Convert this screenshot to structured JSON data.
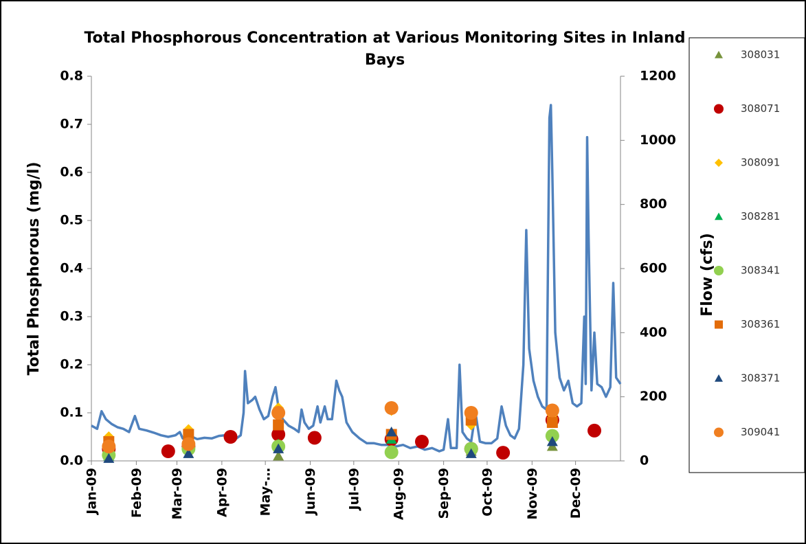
{
  "chart_data": {
    "type": "scatter",
    "title": "Total Phosphorous Concentration at Various Monitoring Sites in Inland Bays",
    "ylabel": "Total Phosphorous (mg/l)",
    "y2label": "Flow (cfs)",
    "xlim": [
      0,
      365
    ],
    "xticks": [
      {
        "value": 0,
        "label": "Jan-09"
      },
      {
        "value": 31,
        "label": "Feb-09"
      },
      {
        "value": 59,
        "label": "Mar-09"
      },
      {
        "value": 90,
        "label": "Apr-09"
      },
      {
        "value": 120,
        "label": "May-…"
      },
      {
        "value": 151,
        "label": "Jun-09"
      },
      {
        "value": 181,
        "label": "Jul-09"
      },
      {
        "value": 212,
        "label": "Aug-09"
      },
      {
        "value": 243,
        "label": "Sep-09"
      },
      {
        "value": 273,
        "label": "Oct-09"
      },
      {
        "value": 304,
        "label": "Nov-09"
      },
      {
        "value": 334,
        "label": "Dec-09"
      }
    ],
    "ylim": [
      0,
      0.8
    ],
    "yticks": [
      {
        "value": 0,
        "label": "0.0"
      },
      0.1,
      0.2,
      0.3,
      0.4,
      0.5,
      0.6,
      0.7,
      0.8
    ],
    "y2lim": [
      0,
      1200
    ],
    "y2ticks": [
      0,
      200,
      400,
      600,
      800,
      1000,
      1200
    ],
    "x": [
      12,
      53,
      67,
      96,
      129,
      154,
      207,
      228,
      262,
      284,
      318,
      347
    ],
    "series": [
      {
        "name": "308031",
        "color": "#77933c",
        "marker": "triangle",
        "values": [
          0.015,
          null,
          0.03,
          null,
          0.01,
          null,
          0.03,
          null,
          0.02,
          null,
          0.03,
          null
        ]
      },
      {
        "name": "308071",
        "color": "#c00000",
        "marker": "circle",
        "values": [
          0.025,
          0.02,
          0.03,
          0.05,
          0.055,
          0.048,
          0.045,
          0.04,
          0.025,
          0.017,
          0.085,
          0.063
        ]
      },
      {
        "name": "308091",
        "color": "#ffc000",
        "marker": "diamond",
        "values": [
          0.05,
          null,
          0.065,
          null,
          0.11,
          null,
          0.105,
          null,
          0.075,
          null,
          0.095,
          null
        ]
      },
      {
        "name": "308281",
        "color": "#00b050",
        "marker": "triangle",
        "values": [
          0.01,
          null,
          null,
          null,
          0.035,
          null,
          0.045,
          null,
          null,
          null,
          null,
          null
        ]
      },
      {
        "name": "308341",
        "color": "#92d050",
        "marker": "circle",
        "values": [
          0.012,
          null,
          0.025,
          null,
          0.03,
          null,
          0.018,
          null,
          0.025,
          null,
          0.052,
          null
        ]
      },
      {
        "name": "308361",
        "color": "#e36c09",
        "marker": "square",
        "values": [
          0.04,
          null,
          0.055,
          null,
          0.075,
          null,
          0.055,
          null,
          0.085,
          null,
          0.08,
          null
        ]
      },
      {
        "name": "308371",
        "color": "#1f497d",
        "marker": "triangle",
        "values": [
          0.005,
          null,
          0.015,
          null,
          0.025,
          null,
          0.06,
          null,
          0.015,
          null,
          0.04,
          null
        ]
      },
      {
        "name": "309041",
        "color": "#f07f20",
        "marker": "circle",
        "values": [
          0.03,
          null,
          0.035,
          null,
          0.1,
          null,
          0.11,
          null,
          0.1,
          null,
          0.105,
          null
        ]
      }
    ],
    "flow": {
      "color": "#4f81bd",
      "axis": "y2",
      "x": [
        0,
        4,
        7,
        10,
        14,
        18,
        22,
        26,
        30,
        33,
        38,
        43,
        48,
        53,
        58,
        61,
        63,
        68,
        73,
        78,
        83,
        88,
        92,
        96,
        100,
        103,
        105,
        106,
        108,
        111,
        113,
        116,
        119,
        122,
        125,
        127,
        129,
        132,
        136,
        140,
        143,
        145,
        147,
        150,
        153,
        156,
        158,
        161,
        163,
        166,
        169,
        171,
        173,
        176,
        180,
        185,
        190,
        195,
        200,
        205,
        210,
        215,
        220,
        225,
        230,
        235,
        240,
        243,
        246,
        248,
        252,
        254,
        256,
        259,
        262,
        265,
        268,
        272,
        276,
        280,
        283,
        286,
        289,
        292,
        295,
        298,
        300,
        302,
        305,
        308,
        311,
        314,
        316,
        317,
        318,
        320,
        323,
        326,
        329,
        332,
        335,
        338,
        340,
        341,
        342,
        343,
        345,
        347,
        349,
        352,
        355,
        358,
        360,
        362,
        365
      ],
      "values": [
        110,
        100,
        155,
        130,
        115,
        105,
        100,
        90,
        140,
        100,
        95,
        88,
        80,
        75,
        80,
        90,
        70,
        78,
        68,
        72,
        70,
        78,
        80,
        75,
        70,
        80,
        150,
        280,
        180,
        190,
        200,
        160,
        130,
        140,
        200,
        230,
        170,
        130,
        110,
        100,
        90,
        160,
        120,
        100,
        110,
        170,
        120,
        170,
        130,
        130,
        250,
        220,
        200,
        120,
        90,
        70,
        55,
        55,
        50,
        50,
        45,
        50,
        40,
        45,
        35,
        40,
        30,
        35,
        130,
        40,
        40,
        300,
        90,
        70,
        60,
        150,
        60,
        55,
        55,
        70,
        170,
        110,
        80,
        70,
        100,
        300,
        720,
        350,
        250,
        200,
        170,
        160,
        1070,
        1110,
        900,
        400,
        260,
        220,
        250,
        180,
        170,
        180,
        450,
        240,
        1010,
        700,
        220,
        400,
        240,
        230,
        200,
        230,
        555,
        260,
        240
      ]
    }
  }
}
